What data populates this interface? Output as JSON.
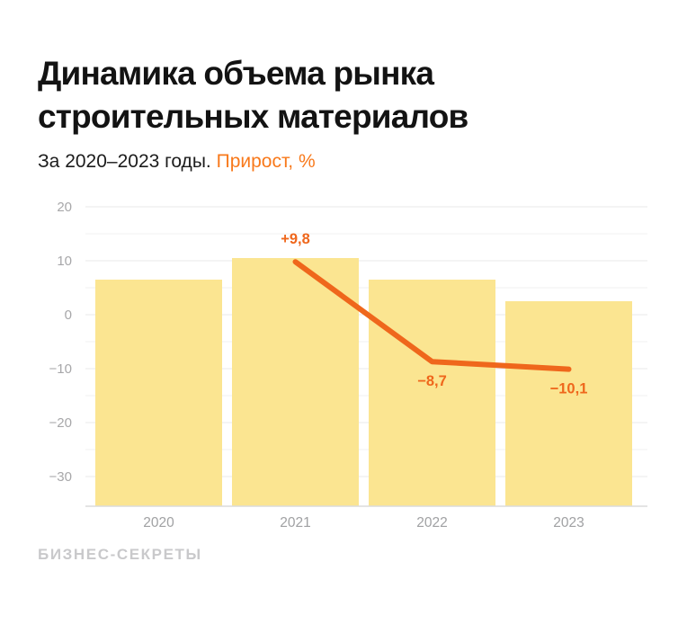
{
  "header": {
    "title_line1": "Динамика объема рынка",
    "title_line2": "строительных материалов",
    "subtitle_text": "За 2020–2023 годы.",
    "subtitle_highlight": "Прирост, %"
  },
  "footer": {
    "brand": "БИЗНЕС-СЕКРЕТЫ"
  },
  "colors": {
    "background": "#FFFFFF",
    "title_black": "#131313",
    "subtitle_black": "#1C1C1C",
    "accent_orange": "#F8791B",
    "line_orange": "#EF671C",
    "bar_yellow": "#FBE591",
    "grid_minor": "#F2F2F2",
    "grid_major": "#E9E9E9",
    "axis_line": "#DBDBDB",
    "tick_label_gray": "#A7A7A9",
    "category_label_gray": "#A0A1A3",
    "watermark_gray": "#C9C9CB"
  },
  "chart_data": {
    "type": "combo-bar-line",
    "title": "Динамика объема рынка строительных материалов",
    "subtitle": "За 2020–2023 годы. Прирост, %",
    "categories": [
      "2020",
      "2021",
      "2022",
      "2023"
    ],
    "bars": {
      "values_axis_units": [
        6.5,
        10.5,
        6.5,
        2.5
      ]
    },
    "line": {
      "name": "Прирост, %",
      "categories": [
        "2021",
        "2022",
        "2023"
      ],
      "values": [
        9.8,
        -8.7,
        -10.1
      ],
      "point_labels": [
        "+9,8",
        "−8,7",
        "−10,1"
      ]
    },
    "yaxis": {
      "ticks": [
        20,
        10,
        0,
        -10,
        -20,
        -30
      ],
      "tick_labels": [
        "20",
        "10",
        "0",
        "−10",
        "−20",
        "−30"
      ],
      "minor_ticks": [
        15,
        5,
        -5,
        -15,
        -25
      ],
      "ylim": [
        -35.5,
        20
      ],
      "grid": true
    },
    "legend": "none"
  }
}
